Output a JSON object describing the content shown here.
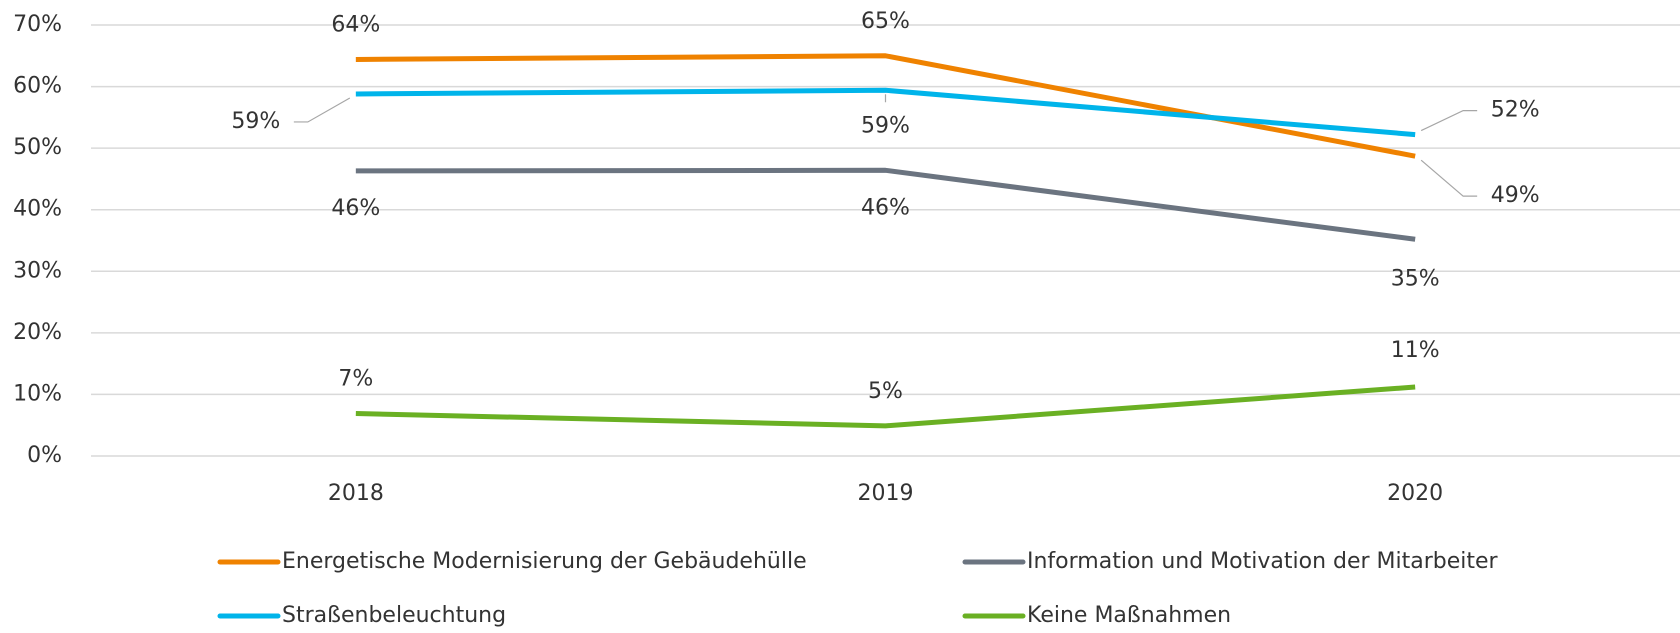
{
  "chart_data": {
    "type": "line",
    "categories": [
      "2018",
      "2019",
      "2020"
    ],
    "series": [
      {
        "name": "Energetische Modernisierung der Gebäudehülle",
        "color": "#ef8200",
        "values": [
          64.4,
          65,
          48.7
        ],
        "value_labels": [
          "64%",
          "65%",
          "49%"
        ]
      },
      {
        "name": "Straßenbeleuchtung",
        "color": "#00b4ea",
        "values": [
          58.8,
          59.4,
          52.2
        ],
        "value_labels": [
          "59%",
          "59%",
          "52%"
        ]
      },
      {
        "name": "Information und Motivation der Mitarbeiter",
        "color": "#6b7480",
        "values": [
          46.3,
          46.4,
          35.2
        ],
        "value_labels": [
          "46%",
          "46%",
          "35%"
        ]
      },
      {
        "name": "Keine Maßnahmen",
        "color": "#6ab023",
        "values": [
          6.9,
          4.9,
          11.2
        ],
        "value_labels": [
          "7%",
          "5%",
          "11%"
        ]
      }
    ],
    "ylim": [
      0,
      70
    ],
    "yticks": [
      {
        "value": 0,
        "label": "0%"
      },
      {
        "value": 10,
        "label": "10%"
      },
      {
        "value": 20,
        "label": "20%"
      },
      {
        "value": 30,
        "label": "30%"
      },
      {
        "value": 40,
        "label": "40%"
      },
      {
        "value": 50,
        "label": "50%"
      },
      {
        "value": 60,
        "label": "60%"
      },
      {
        "value": 70,
        "label": "70%"
      }
    ],
    "grid": true,
    "legend": "bottom"
  }
}
